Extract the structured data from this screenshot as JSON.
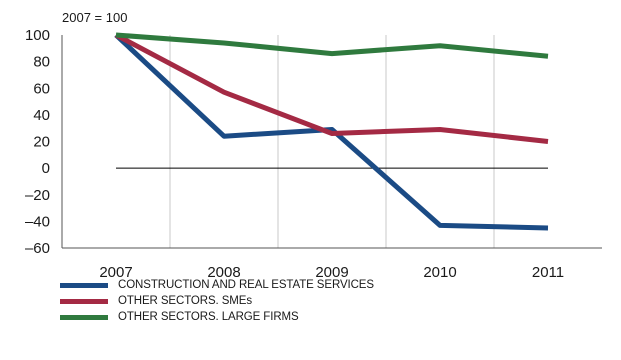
{
  "chart_data": {
    "type": "line",
    "unit_label": "2007 = 100",
    "categories": [
      "2007",
      "2008",
      "2009",
      "2010",
      "2011"
    ],
    "ylim": [
      -60,
      100
    ],
    "yticks": [
      100,
      80,
      60,
      40,
      20,
      0,
      -20,
      -40,
      -60
    ],
    "ytick_labels": [
      "100",
      "80",
      "60",
      "40",
      "20",
      "0",
      "–20",
      "–40",
      "–60"
    ],
    "grid": "vertical",
    "legend_position": "bottom",
    "series": [
      {
        "name": "CONSTRUCTION AND REAL ESTATE SERVICES",
        "color": "#1b4b85",
        "values": [
          100,
          24,
          29,
          -43,
          -45
        ]
      },
      {
        "name": "OTHER SECTORS. SMEs",
        "color": "#a42a44",
        "values": [
          100,
          57,
          26,
          29,
          20
        ]
      },
      {
        "name": "OTHER SECTORS. LARGE FIRMS",
        "color": "#2f7a3e",
        "values": [
          100,
          94,
          86,
          92,
          84
        ]
      }
    ]
  }
}
